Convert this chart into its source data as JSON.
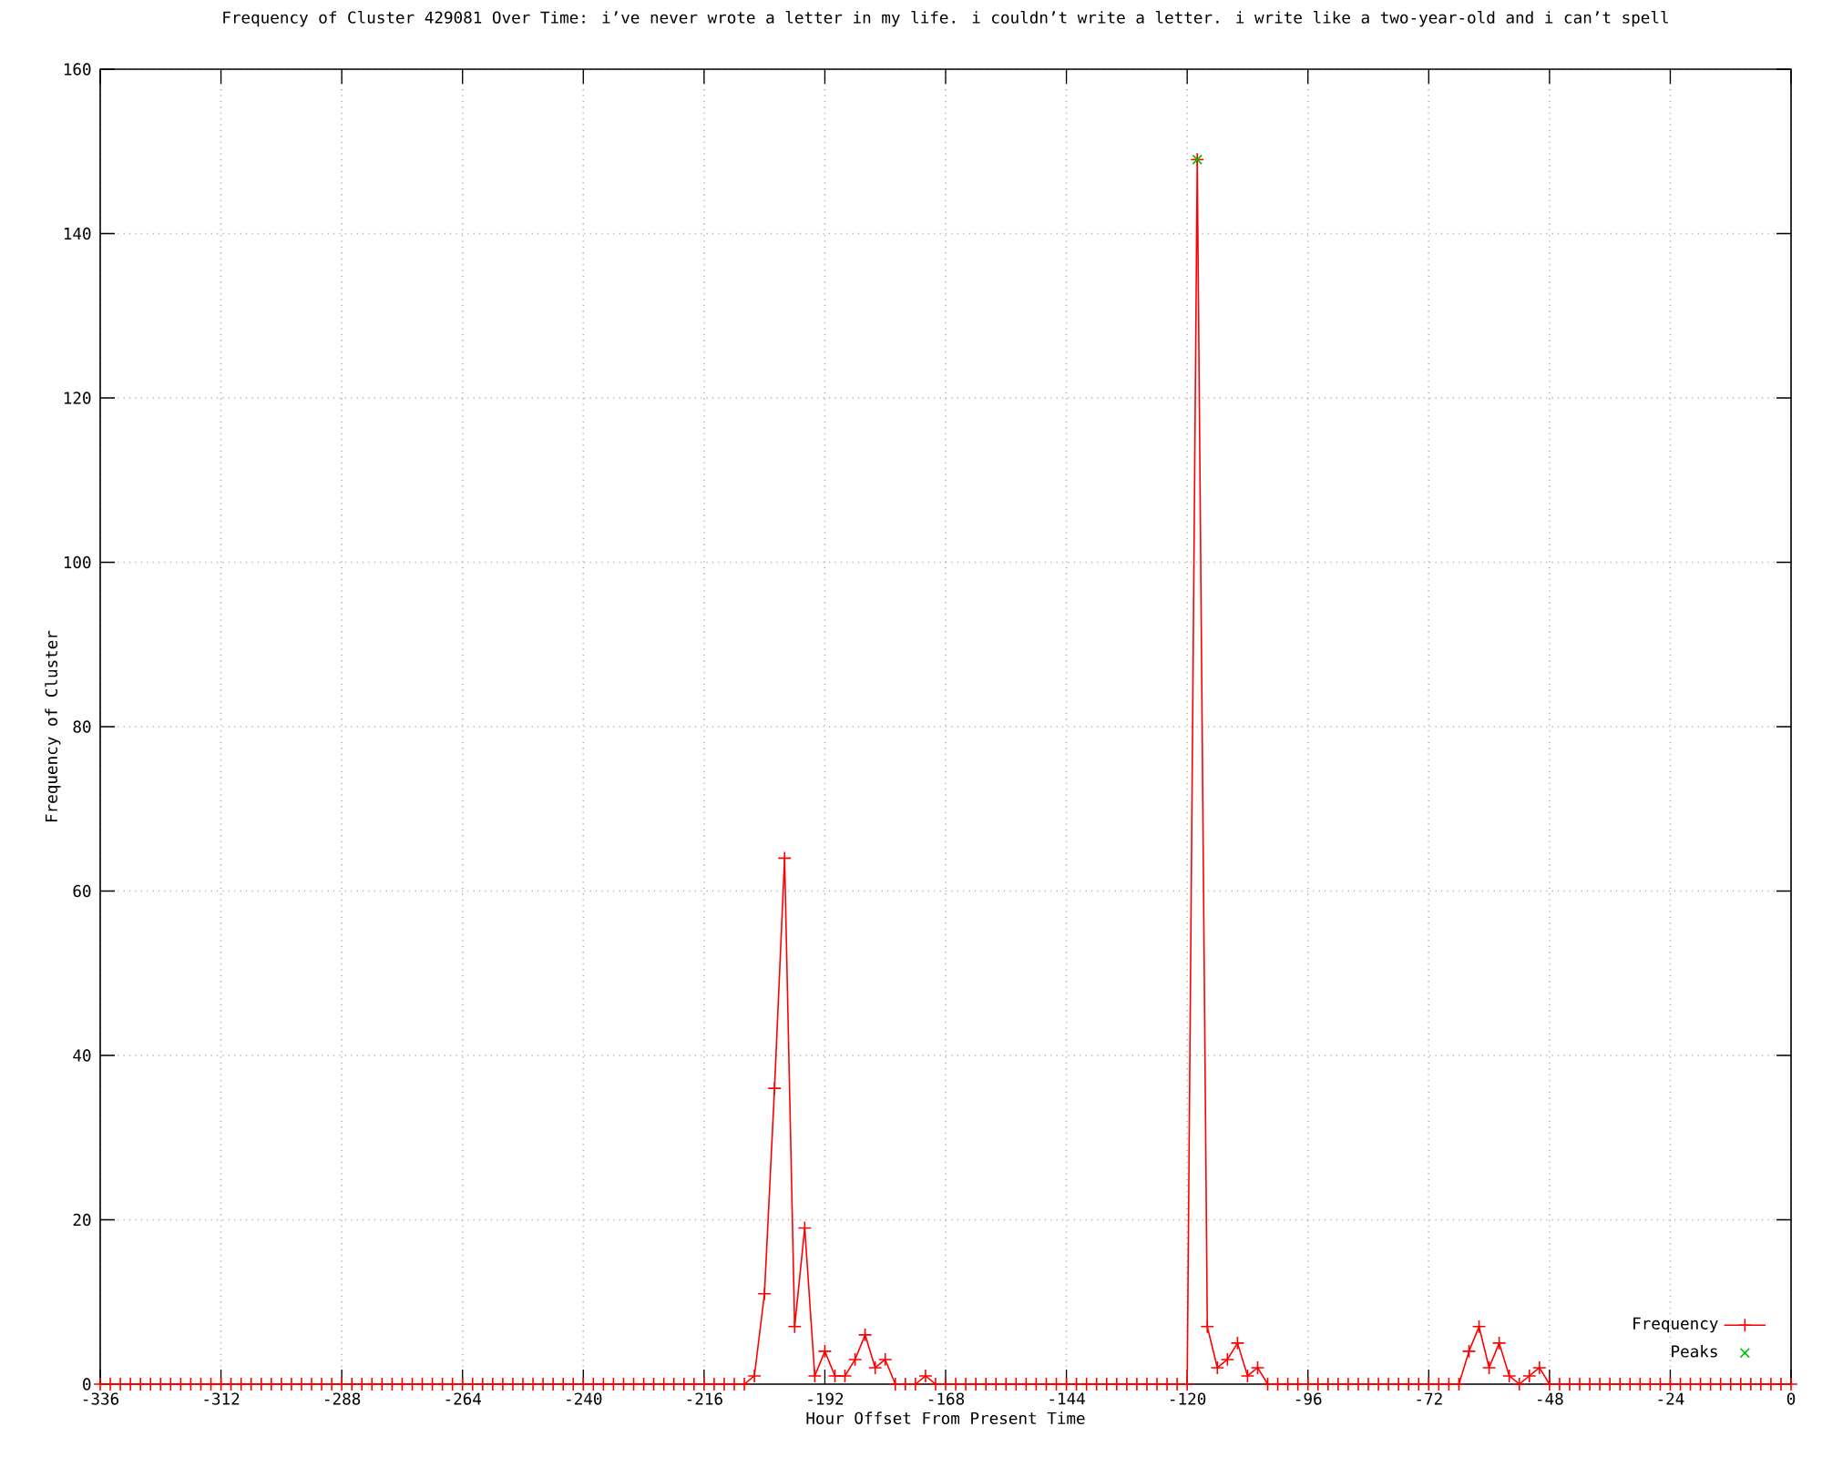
{
  "chart_data": {
    "type": "line",
    "title": "Frequency of Cluster 429081 Over Time: i’ve never wrote a letter in my life. i couldn’t write a letter. i write like a two-year-old and i can’t spell",
    "xlabel": "Hour Offset From Present Time",
    "ylabel": "Frequency of Cluster",
    "x": [
      -336,
      -334,
      -332,
      -330,
      -328,
      -326,
      -324,
      -322,
      -320,
      -318,
      -316,
      -314,
      -312,
      -310,
      -308,
      -306,
      -304,
      -302,
      -300,
      -298,
      -296,
      -294,
      -292,
      -290,
      -288,
      -286,
      -284,
      -282,
      -280,
      -278,
      -276,
      -274,
      -272,
      -270,
      -268,
      -266,
      -264,
      -262,
      -260,
      -258,
      -256,
      -254,
      -252,
      -250,
      -248,
      -246,
      -244,
      -242,
      -240,
      -238,
      -236,
      -234,
      -232,
      -230,
      -228,
      -226,
      -224,
      -222,
      -220,
      -218,
      -216,
      -214,
      -212,
      -210,
      -208,
      -206,
      -204,
      -202,
      -200,
      -198,
      -196,
      -194,
      -192,
      -190,
      -188,
      -186,
      -184,
      -182,
      -180,
      -178,
      -176,
      -174,
      -172,
      -170,
      -168,
      -166,
      -164,
      -162,
      -160,
      -158,
      -156,
      -154,
      -152,
      -150,
      -148,
      -146,
      -144,
      -142,
      -140,
      -138,
      -136,
      -134,
      -132,
      -130,
      -128,
      -126,
      -124,
      -122,
      -120,
      -118,
      -116,
      -114,
      -112,
      -110,
      -108,
      -106,
      -104,
      -102,
      -100,
      -98,
      -96,
      -94,
      -92,
      -90,
      -88,
      -86,
      -84,
      -82,
      -80,
      -78,
      -76,
      -74,
      -72,
      -70,
      -68,
      -66,
      -64,
      -62,
      -60,
      -58,
      -56,
      -54,
      -52,
      -50,
      -48,
      -46,
      -44,
      -42,
      -40,
      -38,
      -36,
      -34,
      -32,
      -30,
      -28,
      -26,
      -24,
      -22,
      -20,
      -18,
      -16,
      -14,
      -12,
      -10,
      -8,
      -6,
      -4,
      -2,
      0
    ],
    "series": [
      {
        "name": "Frequency",
        "color": "#ff0000",
        "marker": "cross",
        "values": [
          0,
          0,
          0,
          0,
          0,
          0,
          0,
          0,
          0,
          0,
          0,
          0,
          0,
          0,
          0,
          0,
          0,
          0,
          0,
          0,
          0,
          0,
          0,
          0,
          0,
          0,
          0,
          0,
          0,
          0,
          0,
          0,
          0,
          0,
          0,
          0,
          0,
          0,
          0,
          0,
          0,
          0,
          0,
          0,
          0,
          0,
          0,
          0,
          0,
          0,
          0,
          0,
          0,
          0,
          0,
          0,
          0,
          0,
          0,
          0,
          0,
          0,
          0,
          0,
          0,
          1,
          11,
          36,
          64,
          7,
          19,
          1,
          4,
          1,
          1,
          3,
          6,
          2,
          3,
          0,
          0,
          0,
          1,
          0,
          0,
          0,
          0,
          0,
          0,
          0,
          0,
          0,
          0,
          0,
          0,
          0,
          0,
          0,
          0,
          0,
          0,
          0,
          0,
          0,
          0,
          0,
          0,
          0,
          0,
          149,
          7,
          2,
          3,
          5,
          1,
          2,
          0,
          0,
          0,
          0,
          0,
          0,
          0,
          0,
          0,
          0,
          0,
          0,
          0,
          0,
          0,
          0,
          0,
          0,
          0,
          0,
          4,
          7,
          2,
          5,
          1,
          0,
          1,
          2,
          0,
          0,
          0,
          0,
          0,
          0,
          0,
          0,
          0,
          0,
          0,
          0,
          0,
          0,
          0,
          0,
          0,
          0,
          0,
          0,
          0,
          0,
          0,
          0,
          0
        ]
      },
      {
        "name": "Peaks",
        "type": "scatter",
        "color": "#00c000",
        "marker": "cross",
        "x": [
          -118
        ],
        "values": [
          149
        ]
      }
    ],
    "xlim": [
      -336,
      0
    ],
    "xticks": [
      -336,
      -312,
      -288,
      -264,
      -240,
      -216,
      -192,
      -168,
      -144,
      -120,
      -96,
      -72,
      -48,
      -24,
      0
    ],
    "ylim": [
      0,
      160
    ],
    "yticks": [
      0,
      20,
      40,
      60,
      80,
      100,
      120,
      140,
      160
    ],
    "grid": true,
    "legend": "bottom right"
  }
}
